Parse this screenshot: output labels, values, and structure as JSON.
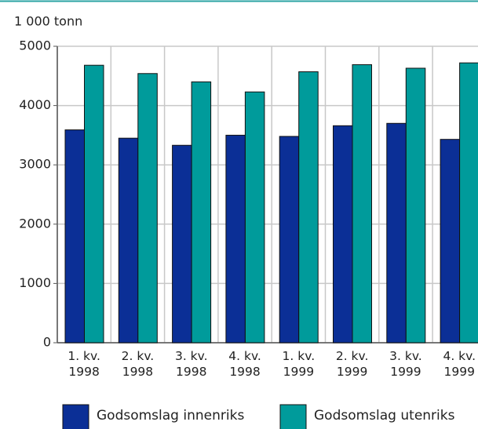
{
  "chart_data": {
    "type": "bar",
    "y_axis_label": "1 000 tonn",
    "categories": [
      "1. kv. 1998",
      "2. kv. 1998",
      "3. kv. 1998",
      "4. kv. 1998",
      "1. kv. 1999",
      "2. kv. 1999",
      "3. kv. 1999",
      "4. kv. 1999"
    ],
    "series": [
      {
        "name": "Godsomslag innenriks",
        "color": "#0b2f96",
        "values": [
          3590,
          3450,
          3330,
          3500,
          3480,
          3660,
          3700,
          3430
        ]
      },
      {
        "name": "Godsomslag utenriks",
        "color": "#009b9b",
        "values": [
          4680,
          4540,
          4400,
          4230,
          4570,
          4690,
          4630,
          4720
        ]
      }
    ],
    "ylim": [
      0,
      5000
    ],
    "yticks": [
      0,
      1000,
      2000,
      3000,
      4000,
      5000
    ],
    "grid": true,
    "legend": "bottom"
  }
}
